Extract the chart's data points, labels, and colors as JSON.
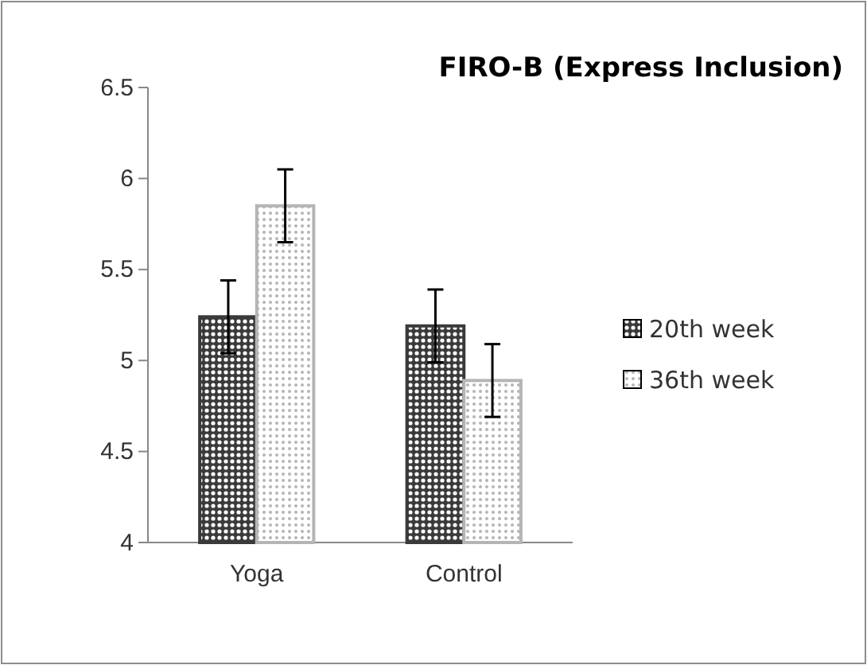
{
  "chart_data": {
    "type": "bar",
    "title": "FIRO-B (Express Inclusion)",
    "categories": [
      "Yoga",
      "Control"
    ],
    "series": [
      {
        "name": "20th week",
        "color": "#3a3a3a",
        "values": [
          5.24,
          5.19
        ],
        "errors": [
          0.2,
          0.2
        ]
      },
      {
        "name": "36th week",
        "color": "#b5b5b5",
        "values": [
          5.85,
          4.89
        ],
        "errors": [
          0.2,
          0.2
        ]
      }
    ],
    "ylim": [
      4,
      6.5
    ],
    "yticks": [
      4,
      4.5,
      5,
      5.5,
      6,
      6.5
    ],
    "grid": false,
    "legend": "right"
  }
}
